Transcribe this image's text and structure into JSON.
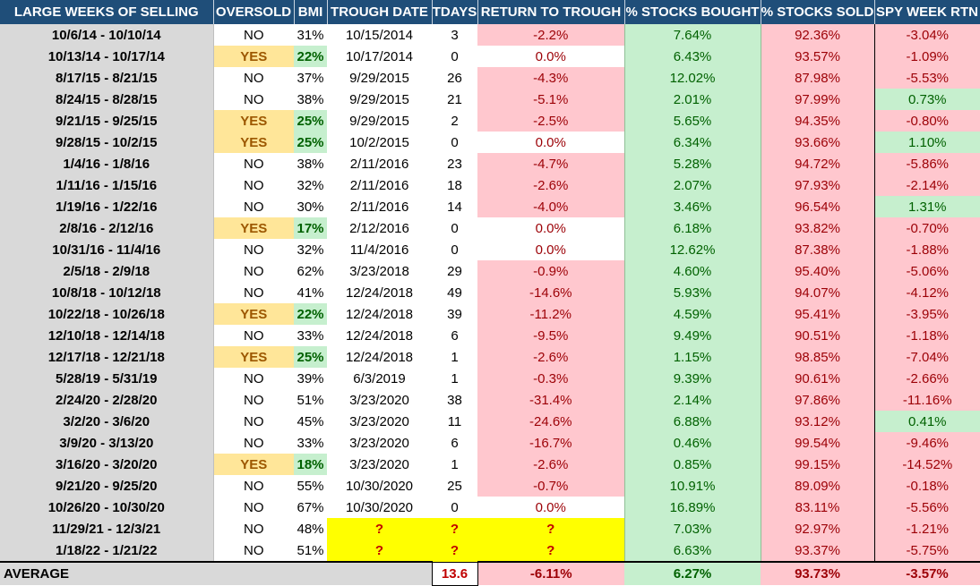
{
  "headers": {
    "dates": "LARGE WEEKS OF SELLING",
    "oversold": "OVERSOLD",
    "bmi": "BMI",
    "trough_date": "TROUGH DATE",
    "tdays": "TDAYS",
    "return": "RETURN TO TROUGH",
    "bought": "% STOCKS BOUGHT",
    "sold": "% STOCKS SOLD",
    "spy": "SPY WEEK RTN"
  },
  "rows": [
    {
      "dates": "10/6/14 - 10/10/14",
      "oversold": "NO",
      "bmi": "31%",
      "trough": "10/15/2014",
      "tdays": "3",
      "ret": "-2.2%",
      "bought": "7.64%",
      "sold": "92.36%",
      "spy": "-3.04%"
    },
    {
      "dates": "10/13/14 - 10/17/14",
      "oversold": "YES",
      "bmi": "22%",
      "trough": "10/17/2014",
      "tdays": "0",
      "ret": "0.0%",
      "bought": "6.43%",
      "sold": "93.57%",
      "spy": "-1.09%"
    },
    {
      "dates": "8/17/15 - 8/21/15",
      "oversold": "NO",
      "bmi": "37%",
      "trough": "9/29/2015",
      "tdays": "26",
      "ret": "-4.3%",
      "bought": "12.02%",
      "sold": "87.98%",
      "spy": "-5.53%"
    },
    {
      "dates": "8/24/15 - 8/28/15",
      "oversold": "NO",
      "bmi": "38%",
      "trough": "9/29/2015",
      "tdays": "21",
      "ret": "-5.1%",
      "bought": "2.01%",
      "sold": "97.99%",
      "spy": "0.73%"
    },
    {
      "dates": "9/21/15 - 9/25/15",
      "oversold": "YES",
      "bmi": "25%",
      "trough": "9/29/2015",
      "tdays": "2",
      "ret": "-2.5%",
      "bought": "5.65%",
      "sold": "94.35%",
      "spy": "-0.80%"
    },
    {
      "dates": "9/28/15 - 10/2/15",
      "oversold": "YES",
      "bmi": "25%",
      "trough": "10/2/2015",
      "tdays": "0",
      "ret": "0.0%",
      "bought": "6.34%",
      "sold": "93.66%",
      "spy": "1.10%"
    },
    {
      "dates": "1/4/16 - 1/8/16",
      "oversold": "NO",
      "bmi": "38%",
      "trough": "2/11/2016",
      "tdays": "23",
      "ret": "-4.7%",
      "bought": "5.28%",
      "sold": "94.72%",
      "spy": "-5.86%"
    },
    {
      "dates": "1/11/16 - 1/15/16",
      "oversold": "NO",
      "bmi": "32%",
      "trough": "2/11/2016",
      "tdays": "18",
      "ret": "-2.6%",
      "bought": "2.07%",
      "sold": "97.93%",
      "spy": "-2.14%"
    },
    {
      "dates": "1/19/16 - 1/22/16",
      "oversold": "NO",
      "bmi": "30%",
      "trough": "2/11/2016",
      "tdays": "14",
      "ret": "-4.0%",
      "bought": "3.46%",
      "sold": "96.54%",
      "spy": "1.31%"
    },
    {
      "dates": "2/8/16 - 2/12/16",
      "oversold": "YES",
      "bmi": "17%",
      "trough": "2/12/2016",
      "tdays": "0",
      "ret": "0.0%",
      "bought": "6.18%",
      "sold": "93.82%",
      "spy": "-0.70%"
    },
    {
      "dates": "10/31/16 - 11/4/16",
      "oversold": "NO",
      "bmi": "32%",
      "trough": "11/4/2016",
      "tdays": "0",
      "ret": "0.0%",
      "bought": "12.62%",
      "sold": "87.38%",
      "spy": "-1.88%"
    },
    {
      "dates": "2/5/18 - 2/9/18",
      "oversold": "NO",
      "bmi": "62%",
      "trough": "3/23/2018",
      "tdays": "29",
      "ret": "-0.9%",
      "bought": "4.60%",
      "sold": "95.40%",
      "spy": "-5.06%"
    },
    {
      "dates": "10/8/18 - 10/12/18",
      "oversold": "NO",
      "bmi": "41%",
      "trough": "12/24/2018",
      "tdays": "49",
      "ret": "-14.6%",
      "bought": "5.93%",
      "sold": "94.07%",
      "spy": "-4.12%"
    },
    {
      "dates": "10/22/18 - 10/26/18",
      "oversold": "YES",
      "bmi": "22%",
      "trough": "12/24/2018",
      "tdays": "39",
      "ret": "-11.2%",
      "bought": "4.59%",
      "sold": "95.41%",
      "spy": "-3.95%"
    },
    {
      "dates": "12/10/18 - 12/14/18",
      "oversold": "NO",
      "bmi": "33%",
      "trough": "12/24/2018",
      "tdays": "6",
      "ret": "-9.5%",
      "bought": "9.49%",
      "sold": "90.51%",
      "spy": "-1.18%"
    },
    {
      "dates": "12/17/18 - 12/21/18",
      "oversold": "YES",
      "bmi": "25%",
      "trough": "12/24/2018",
      "tdays": "1",
      "ret": "-2.6%",
      "bought": "1.15%",
      "sold": "98.85%",
      "spy": "-7.04%"
    },
    {
      "dates": "5/28/19 - 5/31/19",
      "oversold": "NO",
      "bmi": "39%",
      "trough": "6/3/2019",
      "tdays": "1",
      "ret": "-0.3%",
      "bought": "9.39%",
      "sold": "90.61%",
      "spy": "-2.66%"
    },
    {
      "dates": "2/24/20 - 2/28/20",
      "oversold": "NO",
      "bmi": "51%",
      "trough": "3/23/2020",
      "tdays": "38",
      "ret": "-31.4%",
      "bought": "2.14%",
      "sold": "97.86%",
      "spy": "-11.16%"
    },
    {
      "dates": "3/2/20 - 3/6/20",
      "oversold": "NO",
      "bmi": "45%",
      "trough": "3/23/2020",
      "tdays": "11",
      "ret": "-24.6%",
      "bought": "6.88%",
      "sold": "93.12%",
      "spy": "0.41%"
    },
    {
      "dates": "3/9/20 - 3/13/20",
      "oversold": "NO",
      "bmi": "33%",
      "trough": "3/23/2020",
      "tdays": "6",
      "ret": "-16.7%",
      "bought": "0.46%",
      "sold": "99.54%",
      "spy": "-9.46%"
    },
    {
      "dates": "3/16/20 - 3/20/20",
      "oversold": "YES",
      "bmi": "18%",
      "trough": "3/23/2020",
      "tdays": "1",
      "ret": "-2.6%",
      "bought": "0.85%",
      "sold": "99.15%",
      "spy": "-14.52%"
    },
    {
      "dates": "9/21/20 - 9/25/20",
      "oversold": "NO",
      "bmi": "55%",
      "trough": "10/30/2020",
      "tdays": "25",
      "ret": "-0.7%",
      "bought": "10.91%",
      "sold": "89.09%",
      "spy": "-0.18%"
    },
    {
      "dates": "10/26/20 - 10/30/20",
      "oversold": "NO",
      "bmi": "67%",
      "trough": "10/30/2020",
      "tdays": "0",
      "ret": "0.0%",
      "bought": "16.89%",
      "sold": "83.11%",
      "spy": "-5.56%"
    },
    {
      "dates": "11/29/21 - 12/3/21",
      "oversold": "NO",
      "bmi": "48%",
      "trough": "?",
      "tdays": "?",
      "ret": "?",
      "bought": "7.03%",
      "sold": "92.97%",
      "spy": "-1.21%"
    },
    {
      "dates": "1/18/22 - 1/21/22",
      "oversold": "NO",
      "bmi": "51%",
      "trough": "?",
      "tdays": "?",
      "ret": "?",
      "bought": "6.63%",
      "sold": "93.37%",
      "spy": "-5.75%"
    }
  ],
  "average": {
    "label": "AVERAGE",
    "tdays": "13.6",
    "ret": "-6.11%",
    "bought": "6.27%",
    "sold": "93.73%",
    "spy": "-3.57%"
  },
  "colors": {
    "header_bg": "#1f4e79",
    "negative_fill": "#ffc7ce",
    "positive_fill": "#c6efce",
    "oversold_fill": "#ffe699",
    "unknown_fill": "#ffff00"
  }
}
